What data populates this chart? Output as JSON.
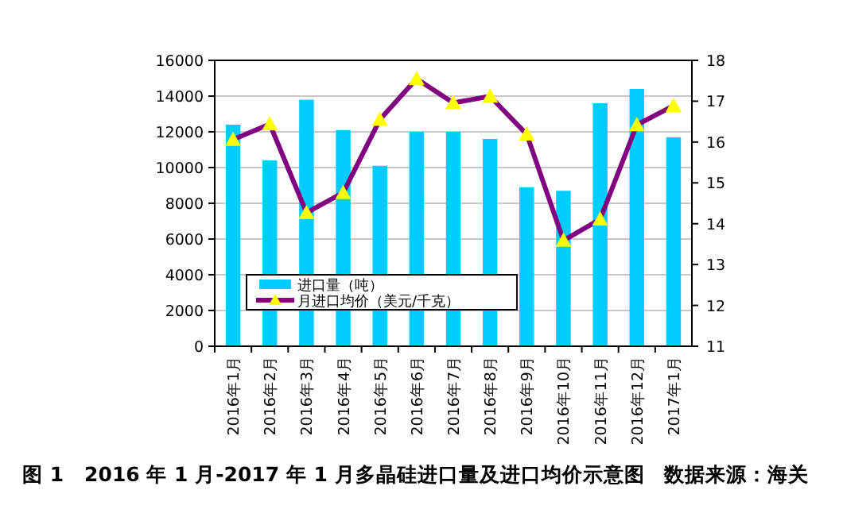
{
  "chart_data": {
    "type": "bar",
    "title": "图 1　2016 年 1 月-2017 年 1 月多晶硅进口量及进口均价示意图",
    "annotations": [
      "数据来源：海关"
    ],
    "categories": [
      "2016年1月",
      "2016年2月",
      "2016年3月",
      "2016年4月",
      "2016年5月",
      "2016年6月",
      "2016年7月",
      "2016年8月",
      "2016年9月",
      "2016年10月",
      "2016年11月",
      "2016年12月",
      "2017年1月"
    ],
    "series": [
      {
        "name": "进口量（吨）",
        "color": "#00ccff",
        "values": [
          12400,
          10400,
          13800,
          12100,
          10100,
          12000,
          12000,
          11600,
          8900,
          8700,
          13600,
          14400,
          11700
        ]
      },
      {
        "name": "月进口均价（美元/千克）",
        "type": "line",
        "axis": "y2",
        "color": "#800080",
        "marker": "triangle",
        "values": [
          16.06,
          16.44,
          14.27,
          14.76,
          16.55,
          17.55,
          16.96,
          17.12,
          16.19,
          13.59,
          14.11,
          16.42,
          16.89
        ]
      }
    ],
    "ylim": [
      0,
      16000
    ],
    "yticks": [
      0,
      2000,
      4000,
      6000,
      8000,
      10000,
      12000,
      14000,
      16000
    ],
    "y2lim": [
      11,
      18
    ],
    "y2ticks": [
      11,
      12,
      13,
      14,
      15,
      16,
      17,
      18
    ],
    "grid": "y",
    "legend": "bottom left"
  }
}
